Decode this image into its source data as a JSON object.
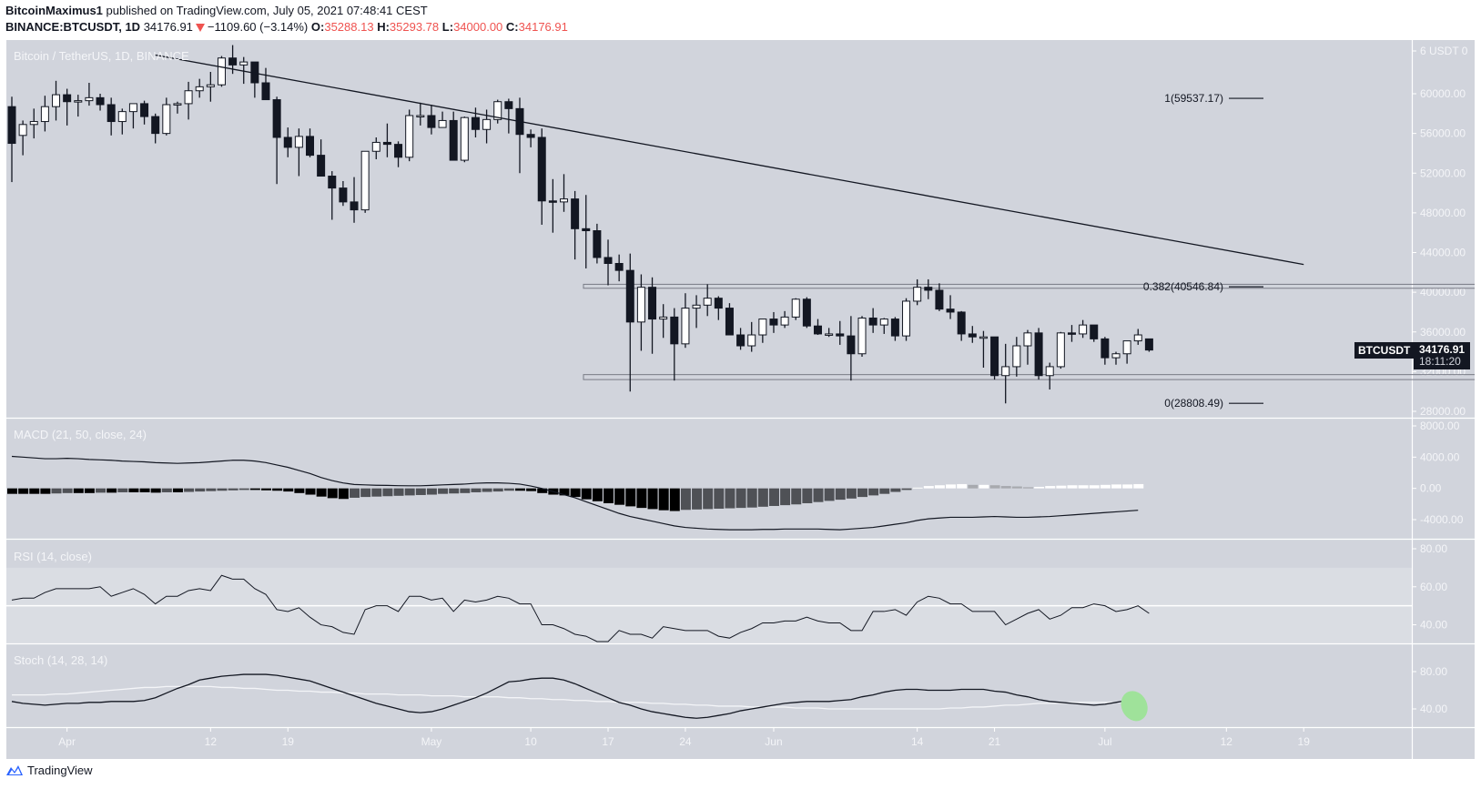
{
  "header": {
    "author": "BitcoinMaximus1",
    "published_text": "published on TradingView.com, July 05, 2021 07:48:41 CEST",
    "symbol": "BINANCE:BTCUSDT, 1D",
    "last": "34176.91",
    "change": "−1109.60 (−3.14%)",
    "o_label": "O:",
    "o": "35288.13",
    "h_label": "H:",
    "h": "35293.78",
    "l_label": "L:",
    "l": "34000.00",
    "c_label": "C:",
    "c": "34176.91"
  },
  "panes": {
    "main_title": "Bitcoin / TetherUS, 1D, BINANCE",
    "macd_title": "MACD (21, 50, close, 24)",
    "rsi_title": "RSI (14, close)",
    "stoch_title": "Stoch (14, 28, 14)"
  },
  "price_tag": {
    "symbol": "BTCUSDT",
    "price": "34176.91",
    "countdown": "18:11:20"
  },
  "footer": {
    "brand": "TradingView"
  },
  "colors": {
    "background": "#d1d4dc",
    "rsi_band": "#dadde3",
    "bull_body": "#ffffff",
    "bear_body": "#131722",
    "axis_text": "#f4f5f8",
    "line": "#131722",
    "highlight": "#9fe29a",
    "change_red": "#ef5350"
  },
  "chart_data": [
    {
      "type": "candlestick",
      "title": "Bitcoin / TetherUS, 1D, BINANCE",
      "ylabel": "USDT",
      "ylim": [
        26000,
        66000
      ],
      "y_ticks": [
        "6 USDT 0",
        "60000.00",
        "56000.00",
        "52000.00",
        "48000.00",
        "44000.00",
        "40000.00",
        "36000.00",
        "32000.00",
        "28000.00"
      ],
      "x_ticks": [
        "Apr",
        "12",
        "19",
        "May",
        "10",
        "17",
        "24",
        "Jun",
        "14",
        "21",
        "Jul",
        "12",
        "19"
      ],
      "candles": [
        [
          58700,
          59700,
          51100,
          55000
        ],
        [
          55800,
          57300,
          53800,
          56900
        ],
        [
          56900,
          58500,
          55500,
          57200
        ],
        [
          57200,
          59800,
          56200,
          58700
        ],
        [
          58700,
          61300,
          57300,
          59900
        ],
        [
          59900,
          60500,
          56800,
          59200
        ],
        [
          59200,
          59900,
          57700,
          59300
        ],
        [
          59300,
          61100,
          58800,
          59600
        ],
        [
          59600,
          60000,
          58300,
          58900
        ],
        [
          58900,
          59600,
          55800,
          57200
        ],
        [
          57200,
          58500,
          55900,
          58200
        ],
        [
          58200,
          59000,
          56500,
          59000
        ],
        [
          59000,
          59300,
          56900,
          57700
        ],
        [
          57700,
          58000,
          55000,
          56000
        ],
        [
          56000,
          59600,
          55800,
          58900
        ],
        [
          58900,
          59200,
          58000,
          59000
        ],
        [
          59000,
          61200,
          57400,
          60300
        ],
        [
          60300,
          61500,
          59600,
          60700
        ],
        [
          60700,
          62200,
          59200,
          60900
        ],
        [
          60900,
          63800,
          60700,
          63600
        ],
        [
          63600,
          64900,
          62000,
          62900
        ],
        [
          62900,
          63700,
          61000,
          63200
        ],
        [
          63200,
          63000,
          59600,
          61100
        ],
        [
          61100,
          62600,
          60200,
          59400
        ],
        [
          59400,
          59700,
          50900,
          55600
        ],
        [
          55600,
          56600,
          53600,
          54600
        ],
        [
          54600,
          56500,
          51700,
          55700
        ],
        [
          55700,
          56500,
          53600,
          53800
        ],
        [
          53800,
          55400,
          53300,
          51700
        ],
        [
          51700,
          52200,
          47300,
          50500
        ],
        [
          50500,
          51200,
          48700,
          49100
        ],
        [
          49100,
          51600,
          47000,
          48300
        ],
        [
          48300,
          51200,
          48000,
          54200
        ],
        [
          54200,
          55600,
          53400,
          55100
        ],
        [
          55100,
          57000,
          53600,
          54900
        ],
        [
          54900,
          55200,
          52600,
          53600
        ],
        [
          53600,
          58400,
          53200,
          57800
        ],
        [
          57800,
          59100,
          56800,
          57800
        ],
        [
          57800,
          58900,
          55900,
          56600
        ],
        [
          56600,
          58200,
          56800,
          57300
        ],
        [
          57300,
          58200,
          53300,
          53300
        ],
        [
          53300,
          57700,
          53100,
          57600
        ],
        [
          57600,
          58600,
          55600,
          56400
        ],
        [
          56400,
          58400,
          55000,
          57400
        ],
        [
          57400,
          59400,
          57000,
          59200
        ],
        [
          59200,
          59500,
          56000,
          58500
        ],
        [
          58500,
          59600,
          52000,
          55900
        ],
        [
          55900,
          56400,
          54600,
          55600
        ],
        [
          55600,
          56500,
          46800,
          49200
        ],
        [
          49200,
          51400,
          46000,
          49100
        ],
        [
          49100,
          51900,
          48100,
          49400
        ],
        [
          49400,
          50200,
          43300,
          46400
        ],
        [
          46400,
          49800,
          42400,
          46200
        ],
        [
          46200,
          46900,
          42900,
          43500
        ],
        [
          43500,
          45300,
          40700,
          42900
        ],
        [
          42900,
          43800,
          41100,
          42200
        ],
        [
          42200,
          43900,
          30000,
          37000
        ],
        [
          37000,
          41800,
          34100,
          40500
        ],
        [
          40500,
          41500,
          33800,
          37300
        ],
        [
          37300,
          38800,
          35400,
          37500
        ],
        [
          37500,
          38400,
          31100,
          34800
        ],
        [
          34800,
          39900,
          34400,
          38400
        ],
        [
          38400,
          39700,
          36400,
          38700
        ],
        [
          38700,
          40800,
          37600,
          39400
        ],
        [
          39400,
          39600,
          37200,
          38400
        ],
        [
          38400,
          38900,
          35700,
          35700
        ],
        [
          35700,
          36400,
          34200,
          34600
        ],
        [
          34600,
          37000,
          34000,
          35700
        ],
        [
          35700,
          37300,
          34900,
          37300
        ],
        [
          37300,
          38000,
          35900,
          36700
        ],
        [
          36700,
          38100,
          36400,
          37500
        ],
        [
          37500,
          39400,
          37200,
          39300
        ],
        [
          39300,
          39500,
          36400,
          36600
        ],
        [
          36600,
          37300,
          35700,
          35800
        ],
        [
          35800,
          36400,
          35500,
          35800
        ],
        [
          35800,
          37100,
          34700,
          35600
        ],
        [
          35600,
          37600,
          31100,
          33800
        ],
        [
          33800,
          37600,
          33500,
          37400
        ],
        [
          37400,
          38400,
          35900,
          36700
        ],
        [
          36700,
          37400,
          35800,
          37300
        ],
        [
          37300,
          37500,
          35100,
          35600
        ],
        [
          35600,
          39400,
          35100,
          39100
        ],
        [
          39100,
          41300,
          38700,
          40500
        ],
        [
          40500,
          41300,
          39300,
          40200
        ],
        [
          40200,
          40900,
          38100,
          38300
        ],
        [
          38300,
          39700,
          37300,
          38000
        ],
        [
          38000,
          38100,
          35100,
          35800
        ],
        [
          35800,
          36600,
          34900,
          35500
        ],
        [
          35500,
          36100,
          32400,
          35500
        ],
        [
          35500,
          35400,
          31200,
          31600
        ],
        [
          31600,
          34800,
          28800,
          32500
        ],
        [
          32500,
          35500,
          31500,
          34600
        ],
        [
          34600,
          36200,
          32700,
          35900
        ],
        [
          35900,
          36400,
          31200,
          31600
        ],
        [
          31600,
          32900,
          30200,
          32500
        ],
        [
          32500,
          36000,
          32300,
          35900
        ],
        [
          35900,
          36700,
          35000,
          35800
        ],
        [
          35800,
          37200,
          35400,
          36700
        ],
        [
          36700,
          36600,
          35000,
          35300
        ],
        [
          35300,
          35500,
          32700,
          33400
        ],
        [
          33400,
          34000,
          32700,
          33800
        ],
        [
          33800,
          35000,
          32800,
          35100
        ],
        [
          35100,
          36300,
          34700,
          35700
        ],
        [
          35300,
          35300,
          34000,
          34176.91
        ]
      ],
      "trendline": {
        "from": [
          63900,
          13
        ],
        "to": [
          42800,
          117
        ],
        "note": "descending resistance"
      },
      "range_boxes": [
        {
          "top": 40800,
          "bottom": 40400
        },
        {
          "top": 31700,
          "bottom": 31200
        }
      ],
      "fib_levels": [
        {
          "label": "1(59537.17)",
          "value": 59537.17
        },
        {
          "label": "0.382(40546.84)",
          "value": 40546.84
        },
        {
          "label": "0(28808.49)",
          "value": 28808.49
        }
      ]
    },
    {
      "type": "line+bar",
      "title": "MACD (21, 50, close, 24)",
      "ylim": [
        -6500,
        9000
      ],
      "y_ticks": [
        "8000.00",
        "4000.00",
        "0.00",
        "-4000.00"
      ],
      "macd_line": [
        4100,
        4000,
        3900,
        3800,
        3800,
        3850,
        3800,
        3700,
        3650,
        3600,
        3500,
        3450,
        3400,
        3300,
        3250,
        3200,
        3250,
        3300,
        3400,
        3500,
        3600,
        3600,
        3500,
        3300,
        3000,
        2700,
        2300,
        1900,
        1400,
        1000,
        700,
        500,
        450,
        400,
        380,
        350,
        330,
        330,
        380,
        450,
        500,
        550,
        650,
        700,
        700,
        650,
        550,
        300,
        0,
        -400,
        -800,
        -1200,
        -1700,
        -2200,
        -2700,
        -3200,
        -3600,
        -3900,
        -4200,
        -4500,
        -4800,
        -5000,
        -5100,
        -5200,
        -5250,
        -5300,
        -5300,
        -5300,
        -5250,
        -5250,
        -5200,
        -5200,
        -5200,
        -5200,
        -5250,
        -5300,
        -5200,
        -5100,
        -5000,
        -4800,
        -4600,
        -4400,
        -4100,
        -3900,
        -3800,
        -3700,
        -3700,
        -3700,
        -3650,
        -3600,
        -3650,
        -3700,
        -3700,
        -3650,
        -3600,
        -3500,
        -3400,
        -3300,
        -3200,
        -3100,
        -3000,
        -2900,
        -2800
      ],
      "histogram": [
        -700,
        -700,
        -700,
        -700,
        -650,
        -600,
        -600,
        -600,
        -550,
        -550,
        -500,
        -500,
        -500,
        -550,
        -500,
        -500,
        -450,
        -400,
        -350,
        -300,
        -250,
        -200,
        -200,
        -250,
        -300,
        -400,
        -600,
        -800,
        -1050,
        -1250,
        -1350,
        -1200,
        -1100,
        -1050,
        -1000,
        -950,
        -900,
        -850,
        -800,
        -700,
        -650,
        -600,
        -500,
        -450,
        -400,
        -300,
        -300,
        -350,
        -600,
        -800,
        -900,
        -1100,
        -1400,
        -1650,
        -1900,
        -2100,
        -2300,
        -2500,
        -2650,
        -2800,
        -2900,
        -2750,
        -2700,
        -2650,
        -2600,
        -2550,
        -2500,
        -2450,
        -2350,
        -2250,
        -2150,
        -2050,
        -1900,
        -1750,
        -1600,
        -1450,
        -1300,
        -1100,
        -900,
        -700,
        -450,
        -200,
        100,
        300,
        400,
        500,
        550,
        450,
        450,
        400,
        300,
        250,
        150,
        200,
        300,
        350,
        400,
        400,
        400,
        450,
        500,
        500,
        550
      ],
      "hist_colors": "black = falling magnitude below zero, dark gray = rising below zero, white = rising above zero, light gray = falling above zero"
    },
    {
      "type": "line",
      "title": "RSI (14, close)",
      "ylim": [
        25,
        92
      ],
      "y_ticks": [
        "80.00",
        "60.00",
        "40.00"
      ],
      "band": [
        30,
        70
      ],
      "midline": 50,
      "values": [
        53,
        54,
        54,
        57,
        59,
        59,
        59,
        59,
        60,
        55,
        57,
        59,
        56,
        51,
        55,
        55,
        58,
        59,
        58,
        66,
        64,
        64,
        59,
        56,
        48,
        47,
        49,
        44,
        40,
        39,
        36,
        35,
        48,
        50,
        50,
        47,
        55,
        55,
        53,
        54,
        47,
        53,
        52,
        53,
        55,
        54,
        51,
        51,
        40,
        40,
        38,
        35,
        34,
        30,
        29,
        37,
        35,
        35,
        33,
        39,
        38,
        37,
        37,
        37,
        34,
        33,
        36,
        38,
        41,
        41,
        42,
        42,
        44,
        42,
        41,
        41,
        37,
        37,
        47,
        47,
        48,
        45,
        52,
        55,
        54,
        51,
        51,
        47,
        47,
        47,
        40,
        43,
        46,
        48,
        43,
        45,
        49,
        49,
        51,
        50,
        47,
        48,
        50,
        46
      ],
      "note": "dips below 30 around May 19 and May 23"
    },
    {
      "type": "line",
      "title": "Stoch (14, 28, 14)",
      "ylim": [
        15,
        100
      ],
      "y_ticks": [
        "80.00",
        "40.00"
      ],
      "k_line": [
        48,
        46,
        45,
        44,
        45,
        46,
        46,
        47,
        47,
        48,
        48,
        48,
        49,
        52,
        57,
        62,
        66,
        71,
        73,
        75,
        76,
        77,
        77,
        77,
        76,
        74,
        72,
        70,
        66,
        62,
        58,
        54,
        50,
        46,
        43,
        40,
        37,
        36,
        37,
        40,
        44,
        48,
        52,
        57,
        63,
        69,
        70,
        72,
        73,
        73,
        71,
        67,
        62,
        57,
        52,
        47,
        44,
        40,
        37,
        35,
        33,
        31,
        30,
        31,
        33,
        35,
        38,
        40,
        42,
        44,
        46,
        47,
        48,
        48,
        48,
        49,
        50,
        53,
        55,
        58,
        60,
        61,
        61,
        60,
        60,
        60,
        61,
        61,
        61,
        59,
        58,
        55,
        53,
        50,
        48,
        47,
        46,
        45,
        44,
        45,
        47,
        49
      ],
      "d_line": [
        55,
        55,
        55,
        55,
        56,
        56,
        57,
        58,
        59,
        60,
        61,
        62,
        63,
        63,
        64,
        64,
        64,
        64,
        64,
        63,
        63,
        62,
        62,
        61,
        60,
        60,
        59,
        59,
        58,
        58,
        57,
        57,
        56,
        56,
        56,
        55,
        55,
        55,
        54,
        54,
        54,
        53,
        53,
        53,
        53,
        52,
        52,
        51,
        51,
        50,
        50,
        49,
        49,
        48,
        48,
        47,
        47,
        47,
        46,
        46,
        45,
        45,
        44,
        44,
        43,
        43,
        43,
        42,
        42,
        42,
        42,
        41,
        41,
        41,
        40,
        40,
        40,
        40,
        40,
        40,
        40,
        40,
        40,
        40,
        40,
        41,
        41,
        42,
        42,
        43,
        44,
        44,
        45,
        46,
        46,
        46,
        47,
        47,
        47,
        47,
        47,
        47
      ],
      "annotation": "green highlight ellipse at latest crossover"
    }
  ]
}
